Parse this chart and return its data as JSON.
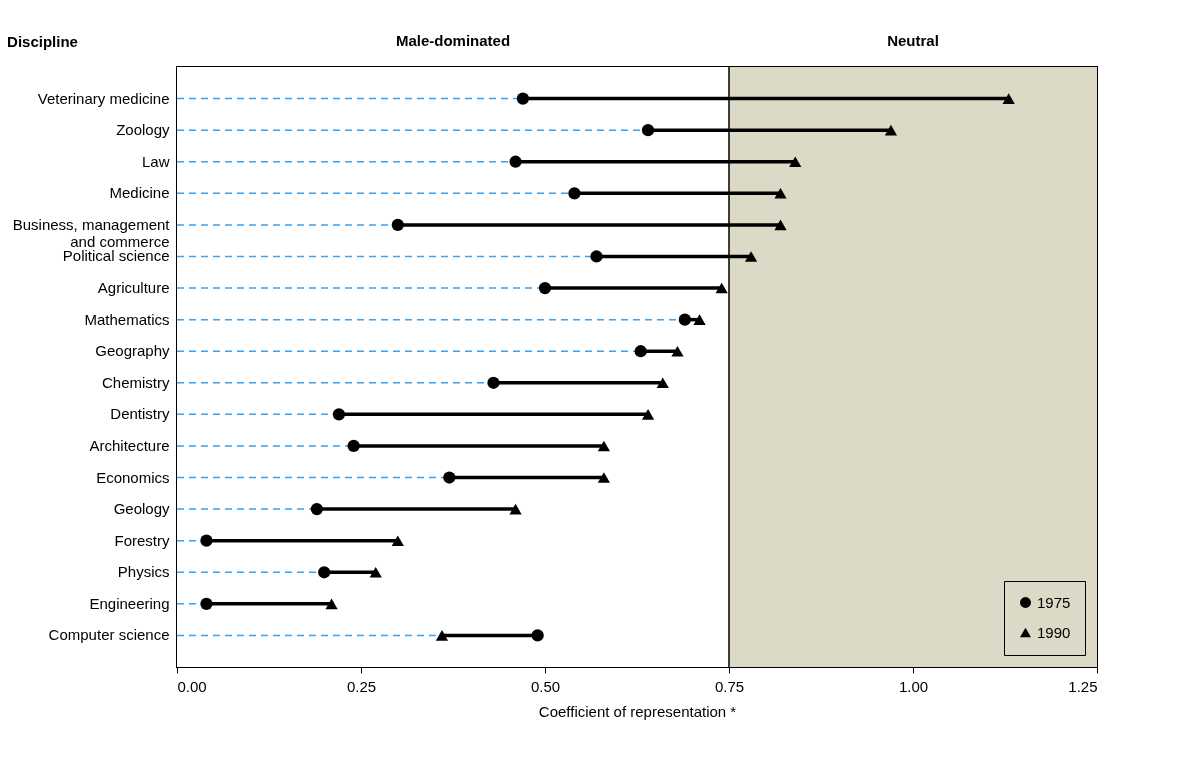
{
  "chart_data": {
    "type": "scatter",
    "ylabel": "Discipline",
    "xlabel": "Coefficient of representation *",
    "categories": [
      "Veterinary medicine",
      "Zoology",
      "Law",
      "Medicine",
      "Business, management\nand commerce",
      "Political science",
      "Agriculture",
      "Mathematics",
      "Geography",
      "Chemistry",
      "Dentistry",
      "Architecture",
      "Economics",
      "Geology",
      "Forestry",
      "Physics",
      "Engineering",
      "Computer science"
    ],
    "series": [
      {
        "name": "1975",
        "color": "#000000",
        "marker": "circle",
        "values": [
          0.47,
          0.64,
          0.46,
          0.54,
          0.3,
          0.57,
          0.5,
          0.69,
          0.63,
          0.43,
          0.22,
          0.24,
          0.37,
          0.19,
          0.04,
          0.2,
          0.04,
          0.49
        ]
      },
      {
        "name": "1990",
        "color": "#000000",
        "marker": "triangle",
        "values": [
          1.13,
          0.97,
          0.84,
          0.82,
          0.82,
          0.78,
          0.74,
          0.71,
          0.68,
          0.66,
          0.64,
          0.58,
          0.58,
          0.46,
          0.3,
          0.27,
          0.21,
          0.36
        ]
      }
    ],
    "xlim": [
      0,
      1.25
    ],
    "xticks": [
      {
        "value": 0,
        "label": "0.00"
      },
      {
        "value": 0.25,
        "label": "0.25"
      },
      {
        "value": 0.5,
        "label": "0.50"
      },
      {
        "value": 0.75,
        "label": "0.75"
      },
      {
        "value": 1,
        "label": "1.00"
      },
      {
        "value": 1.25,
        "label": "1.25"
      }
    ],
    "bands": [
      {
        "axis": "x",
        "from": 0,
        "to": 0.75,
        "label": "Male-dominated",
        "color": "#ffffff"
      },
      {
        "axis": "x",
        "from": 0.75,
        "to": 1.25,
        "label": "Neutral",
        "color": "#dcd9c6"
      }
    ],
    "ref_lines": [
      {
        "axis": "x",
        "value": 0.75
      }
    ],
    "legend": "bottom right",
    "grid": false,
    "orientation": "horizontal"
  }
}
